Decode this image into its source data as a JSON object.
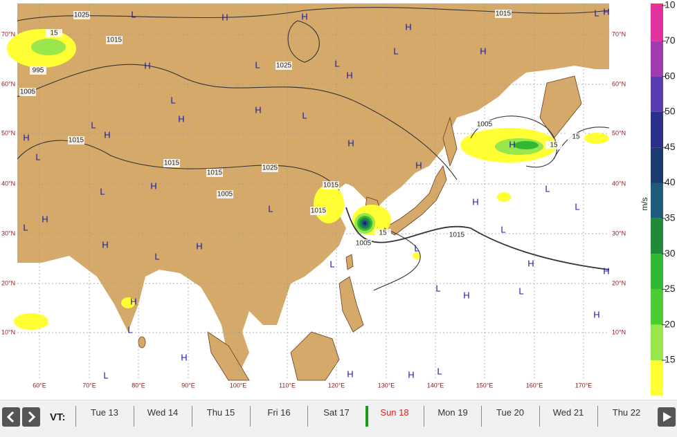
{
  "map": {
    "lat_labels": [
      "70°N",
      "60°N",
      "50°N",
      "40°N",
      "30°N",
      "20°N",
      "10°N"
    ],
    "lon_labels": [
      "60°E",
      "70°E",
      "80°E",
      "90°E",
      "100°E",
      "110°E",
      "120°E",
      "130°E",
      "140°E",
      "150°E",
      "160°E",
      "170°E"
    ],
    "isobar_labels": [
      "1025",
      "1015",
      "15",
      "1015",
      "995",
      "1005",
      "1025",
      "1015",
      "1015",
      "1015",
      "1025",
      "1005",
      "1015",
      "1015",
      "1005",
      "15",
      "1005",
      "15",
      "15",
      "1015"
    ],
    "pressure_centers": [
      "H",
      "L",
      "H",
      "H",
      "L",
      "H",
      "L",
      "H",
      "H",
      "L",
      "L",
      "H",
      "H",
      "L",
      "H",
      "L",
      "H",
      "L",
      "H",
      "H",
      "H",
      "L",
      "H",
      "L",
      "H",
      "L",
      "H",
      "L",
      "H",
      "L",
      "H",
      "L",
      "L",
      "L",
      "H",
      "H",
      "L",
      "H",
      "L",
      "H",
      "L",
      "H",
      "L",
      "L",
      "H",
      "H",
      "L",
      "H",
      "L",
      "H"
    ],
    "colorbar": {
      "ticks": [
        10,
        70,
        60,
        50,
        45,
        40,
        35,
        30,
        25,
        20,
        15
      ],
      "unit": "m/s"
    }
  },
  "timeline": {
    "label": "VT:",
    "days": [
      "Tue 13",
      "Wed 14",
      "Thu 15",
      "Fri 16",
      "Sat 17",
      "Sun 18",
      "Mon 19",
      "Tue 20",
      "Wed 21",
      "Thu 22"
    ]
  }
}
